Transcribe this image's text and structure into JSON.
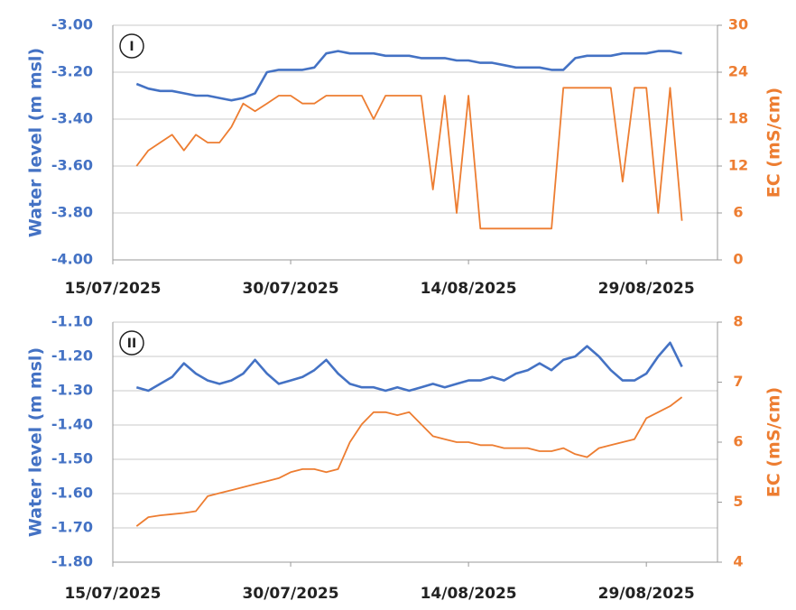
{
  "chart_data": [
    {
      "type": "line",
      "label": "I",
      "ylabel": "Water level (m msl)",
      "y2label": "EC (mS/cm)",
      "x": [
        "17/07/2025",
        "18/07/2025",
        "19/07/2025",
        "20/07/2025",
        "21/07/2025",
        "22/07/2025",
        "23/07/2025",
        "24/07/2025",
        "25/07/2025",
        "26/07/2025",
        "27/07/2025",
        "28/07/2025",
        "29/07/2025",
        "30/07/2025",
        "31/07/2025",
        "01/08/2025",
        "02/08/2025",
        "03/08/2025",
        "04/08/2025",
        "05/08/2025",
        "06/08/2025",
        "07/08/2025",
        "08/08/2025",
        "09/08/2025",
        "10/08/2025",
        "11/08/2025",
        "12/08/2025",
        "13/08/2025",
        "14/08/2025",
        "15/08/2025",
        "16/08/2025",
        "17/08/2025",
        "18/08/2025",
        "19/08/2025",
        "20/08/2025",
        "21/08/2025",
        "22/08/2025",
        "23/08/2025",
        "24/08/2025",
        "25/08/2025",
        "26/08/2025",
        "27/08/2025",
        "28/08/2025",
        "29/08/2025",
        "30/08/2025",
        "31/08/2025",
        "01/09/2025"
      ],
      "series": [
        {
          "color": "#4472c4",
          "values": [
            -3.25,
            -3.27,
            -3.28,
            -3.28,
            -3.29,
            -3.3,
            -3.3,
            -3.31,
            -3.32,
            -3.31,
            -3.29,
            -3.2,
            -3.19,
            -3.19,
            -3.19,
            -3.18,
            -3.12,
            -3.11,
            -3.12,
            -3.12,
            -3.12,
            -3.13,
            -3.13,
            -3.13,
            -3.14,
            -3.14,
            -3.14,
            -3.15,
            -3.15,
            -3.16,
            -3.16,
            -3.17,
            -3.18,
            -3.18,
            -3.18,
            -3.19,
            -3.19,
            -3.14,
            -3.13,
            -3.13,
            -3.13,
            -3.12,
            -3.12,
            -3.12,
            -3.11,
            -3.11,
            -3.12
          ]
        },
        {
          "color": "#ed7d31",
          "axis": "y2",
          "values": [
            12,
            14,
            15,
            16,
            14,
            16,
            15,
            15,
            17,
            20,
            19,
            20,
            21,
            21,
            20,
            20,
            21,
            21,
            21,
            21,
            18,
            21,
            21,
            21,
            21,
            9,
            21,
            6,
            21,
            4,
            4,
            4,
            4,
            4,
            4,
            4,
            22,
            22,
            22,
            22,
            22,
            10,
            22,
            22,
            6,
            22,
            5
          ]
        }
      ],
      "xlim": [
        "15/07/2025",
        "04/09/2025"
      ],
      "xticks": [
        "15/07/2025",
        "30/07/2025",
        "14/08/2025",
        "29/08/2025"
      ],
      "ylim": [
        -4,
        -3
      ],
      "yticks": [
        {
          "value": -4,
          "label": "-4.00"
        },
        {
          "value": -3.8,
          "label": "-3.80"
        },
        {
          "value": -3.6,
          "label": "-3.60"
        },
        {
          "value": -3.4,
          "label": "-3.40"
        },
        {
          "value": -3.2,
          "label": "-3.20"
        },
        {
          "value": -3,
          "label": "-3.00"
        }
      ],
      "y2lim": [
        0,
        30
      ],
      "y2ticks": [
        0,
        6,
        12,
        18,
        24,
        30
      ],
      "grid": true
    },
    {
      "type": "line",
      "label": "II",
      "ylabel": "Water level (m msl)",
      "y2label": "EC (mS/cm)",
      "x": [
        "17/07/2025",
        "18/07/2025",
        "19/07/2025",
        "20/07/2025",
        "21/07/2025",
        "22/07/2025",
        "23/07/2025",
        "24/07/2025",
        "25/07/2025",
        "26/07/2025",
        "27/07/2025",
        "28/07/2025",
        "29/07/2025",
        "30/07/2025",
        "31/07/2025",
        "01/08/2025",
        "02/08/2025",
        "03/08/2025",
        "04/08/2025",
        "05/08/2025",
        "06/08/2025",
        "07/08/2025",
        "08/08/2025",
        "09/08/2025",
        "10/08/2025",
        "11/08/2025",
        "12/08/2025",
        "13/08/2025",
        "14/08/2025",
        "15/08/2025",
        "16/08/2025",
        "17/08/2025",
        "18/08/2025",
        "19/08/2025",
        "20/08/2025",
        "21/08/2025",
        "22/08/2025",
        "23/08/2025",
        "24/08/2025",
        "25/08/2025",
        "26/08/2025",
        "27/08/2025",
        "28/08/2025",
        "29/08/2025",
        "30/08/2025",
        "31/08/2025",
        "01/09/2025"
      ],
      "series": [
        {
          "color": "#4472c4",
          "values": [
            -1.29,
            -1.3,
            -1.28,
            -1.26,
            -1.22,
            -1.25,
            -1.27,
            -1.28,
            -1.27,
            -1.25,
            -1.21,
            -1.25,
            -1.28,
            -1.27,
            -1.26,
            -1.24,
            -1.21,
            -1.25,
            -1.28,
            -1.29,
            -1.29,
            -1.3,
            -1.29,
            -1.3,
            -1.29,
            -1.28,
            -1.29,
            -1.28,
            -1.27,
            -1.27,
            -1.26,
            -1.27,
            -1.25,
            -1.24,
            -1.22,
            -1.24,
            -1.21,
            -1.2,
            -1.17,
            -1.2,
            -1.24,
            -1.27,
            -1.27,
            -1.25,
            -1.2,
            -1.16,
            -1.23
          ]
        },
        {
          "color": "#ed7d31",
          "axis": "y2",
          "values": [
            4.6,
            4.75,
            4.78,
            4.8,
            4.82,
            4.85,
            5.1,
            5.15,
            5.2,
            5.25,
            5.3,
            5.35,
            5.4,
            5.5,
            5.55,
            5.55,
            5.5,
            5.55,
            6.0,
            6.3,
            6.5,
            6.5,
            6.45,
            6.5,
            6.3,
            6.1,
            6.05,
            6.0,
            6.0,
            5.95,
            5.95,
            5.9,
            5.9,
            5.9,
            5.85,
            5.85,
            5.9,
            5.8,
            5.75,
            5.9,
            5.95,
            6.0,
            6.05,
            6.4,
            6.5,
            6.6,
            6.75
          ]
        }
      ],
      "xlim": [
        "15/07/2025",
        "04/09/2025"
      ],
      "xticks": [
        "15/07/2025",
        "30/07/2025",
        "14/08/2025",
        "29/08/2025"
      ],
      "ylim": [
        -1.8,
        -1.1
      ],
      "yticks": [
        {
          "value": -1.8,
          "label": "-1.80"
        },
        {
          "value": -1.7,
          "label": "-1.70"
        },
        {
          "value": -1.6,
          "label": "-1.60"
        },
        {
          "value": -1.5,
          "label": "-1.50"
        },
        {
          "value": -1.4,
          "label": "-1.40"
        },
        {
          "value": -1.3,
          "label": "-1.30"
        },
        {
          "value": -1.2,
          "label": "-1.20"
        },
        {
          "value": -1.1,
          "label": "-1.10"
        }
      ],
      "y2lim": [
        4,
        8
      ],
      "y2ticks": [
        4,
        5,
        6,
        7,
        8
      ],
      "grid": true
    }
  ]
}
